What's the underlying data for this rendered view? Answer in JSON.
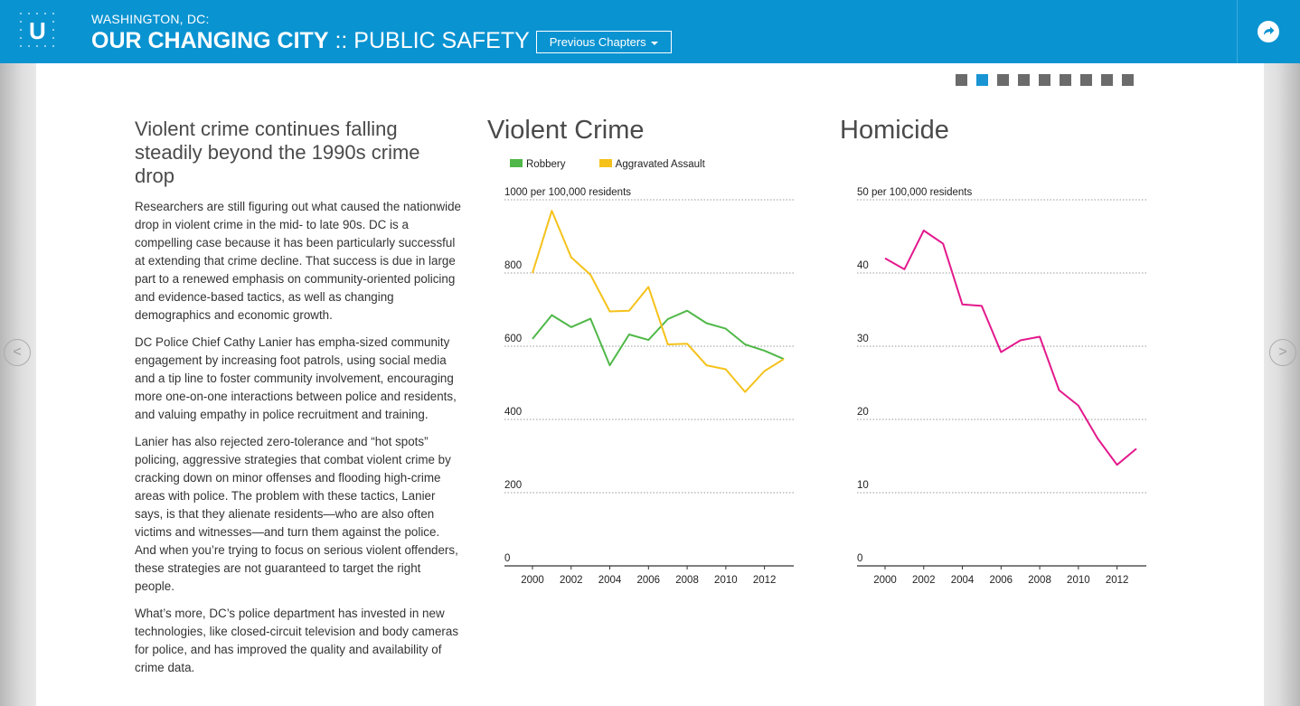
{
  "header": {
    "kicker": "WASHINGTON, DC:",
    "title_strong": "OUR CHANGING CITY",
    "title_sep": " :: ",
    "title_sub": "PUBLIC SAFETY",
    "prev_button_label": "Previous Chapters",
    "logo_letter": "U"
  },
  "pager": {
    "count": 9,
    "active_index": 1
  },
  "nav": {
    "prev_glyph": "<",
    "next_glyph": ">"
  },
  "article": {
    "headline": "Violent crime continues falling steadily beyond the 1990s crime drop",
    "paragraphs": [
      "Researchers are still figuring out what caused the nationwide drop in violent crime in the mid- to late 90s. DC is a compelling case because it has been particularly successful at extending that crime decline. That success is due in large part to a renewed emphasis on community-oriented policing and evidence-based tactics, as well as changing demographics and economic growth.",
      "DC Police Chief Cathy Lanier has empha-sized community engagement by increasing foot patrols, using social media and a tip line to foster community involvement, encouraging more one-on-one interactions between police and residents, and valuing empathy in police recruitment and training.",
      "Lanier has also rejected zero-tolerance and “hot spots” policing, aggressive strategies that combat violent crime by cracking down on minor offenses and flooding high-crime areas with police. The problem with these tactics, Lanier says, is that they alienate residents—who are also often victims and witnesses—and turn them against the police. And when you’re trying to focus on serious violent offenders, these strategies are not guaranteed to target the right people.",
      "What’s more, DC’s police department has invested in new technologies, like closed-circuit television and body cameras for police, and has improved the quality and availability of crime data."
    ]
  },
  "colors": {
    "header_bg": "#0a93d1",
    "robbery": "#4fb848",
    "assault": "#f5c21b",
    "homicide": "#e3198c",
    "pager_active": "#1a95d4",
    "pager_inactive": "#6b6b6b"
  },
  "icons": {
    "share": "share-arrow-icon",
    "logo": "logo-icon"
  },
  "chart_data": [
    {
      "type": "line",
      "title": "Violent Crime",
      "ylabel": "per 100,000 residents",
      "ylim": [
        0,
        1000
      ],
      "yticks": [
        0,
        200,
        400,
        600,
        800,
        1000
      ],
      "xticks": [
        2000,
        2002,
        2004,
        2006,
        2008,
        2010,
        2012
      ],
      "x": [
        2000,
        2001,
        2002,
        2003,
        2004,
        2005,
        2006,
        2007,
        2008,
        2009,
        2010,
        2011,
        2012,
        2013
      ],
      "grid": true,
      "legend": "top-left",
      "series": [
        {
          "name": "Robbery",
          "color": "#4fb848",
          "values": [
            620,
            685,
            652,
            675,
            548,
            632,
            617,
            674,
            697,
            663,
            648,
            605,
            588,
            565
          ]
        },
        {
          "name": "Aggravated Assault",
          "color": "#f5c21b",
          "values": [
            800,
            970,
            843,
            795,
            695,
            697,
            762,
            605,
            607,
            548,
            537,
            475,
            532,
            565
          ]
        }
      ]
    },
    {
      "type": "line",
      "title": "Homicide",
      "ylabel": "per 100,000 residents",
      "ylim": [
        0,
        50
      ],
      "yticks": [
        0,
        10,
        20,
        30,
        40,
        50
      ],
      "xticks": [
        2000,
        2002,
        2004,
        2006,
        2008,
        2010,
        2012
      ],
      "x": [
        2000,
        2001,
        2002,
        2003,
        2004,
        2005,
        2006,
        2007,
        2008,
        2009,
        2010,
        2011,
        2012,
        2013
      ],
      "grid": true,
      "legend": "none",
      "series": [
        {
          "name": "",
          "color": "#e3198c",
          "values": [
            42.0,
            40.5,
            45.8,
            44.0,
            35.7,
            35.5,
            29.2,
            30.8,
            31.3,
            24.0,
            21.9,
            17.4,
            13.8,
            16.0
          ]
        }
      ]
    }
  ]
}
